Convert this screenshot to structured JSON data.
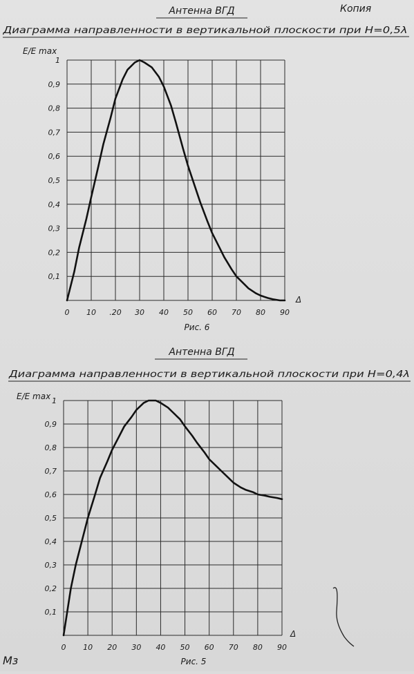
{
  "header": {
    "stamp": "Копия",
    "handwritten_mark": "Мз"
  },
  "chart_data": [
    {
      "type": "line",
      "title": "Антенна ВГД",
      "subtitle": "Диаграмма направленности в вертикальной плоскости при H=0,5λ",
      "ylabel": "E/E max",
      "xlabel": "Δ",
      "caption": "Рис. 6",
      "x_tick_labels": [
        "0",
        "10",
        ".20",
        "30",
        "40",
        "50",
        "60",
        "70",
        "80",
        "90"
      ],
      "y_tick_labels": [
        "0,1",
        "0,2",
        "0,3",
        "0,4",
        "0,5",
        "0,6",
        "0,7",
        "0,8",
        "0,9",
        "1"
      ],
      "xlim": [
        0,
        90
      ],
      "ylim": [
        0,
        1
      ],
      "grid": true,
      "series": [
        {
          "x": [
            0,
            3,
            5,
            8,
            10,
            13,
            15,
            18,
            20,
            23,
            25,
            28,
            30,
            32,
            35,
            38,
            40,
            43,
            45,
            48,
            50,
            53,
            55,
            58,
            60,
            63,
            65,
            68,
            70,
            73,
            75,
            78,
            80,
            83,
            85,
            88,
            90
          ],
          "y": [
            0.0,
            0.12,
            0.22,
            0.34,
            0.43,
            0.56,
            0.65,
            0.76,
            0.84,
            0.92,
            0.96,
            0.99,
            1.0,
            0.99,
            0.97,
            0.93,
            0.89,
            0.81,
            0.74,
            0.63,
            0.56,
            0.47,
            0.41,
            0.33,
            0.28,
            0.22,
            0.18,
            0.13,
            0.1,
            0.07,
            0.05,
            0.03,
            0.02,
            0.01,
            0.005,
            0.0,
            0.0
          ]
        }
      ]
    },
    {
      "type": "line",
      "title": "Антенна ВГД",
      "subtitle": "Диаграмма направленности в вертикальной плоскости при H=0,4λ",
      "ylabel": "E/E max",
      "xlabel": "Δ",
      "caption": "Рис. 5",
      "x_tick_labels": [
        "0",
        "10",
        "20",
        "30",
        "40",
        "50",
        "60",
        "70",
        "80",
        "90"
      ],
      "y_tick_labels": [
        "0,1",
        "0,2",
        "0,3",
        "0,4",
        "0,5",
        "0,6",
        "0,7",
        "0,8",
        "0,9",
        "1"
      ],
      "xlim": [
        0,
        90
      ],
      "ylim": [
        0,
        1
      ],
      "grid": true,
      "series": [
        {
          "x": [
            0,
            3,
            5,
            8,
            10,
            13,
            15,
            18,
            20,
            23,
            25,
            28,
            30,
            33,
            35,
            37,
            38,
            40,
            43,
            45,
            48,
            50,
            53,
            55,
            58,
            60,
            63,
            65,
            68,
            70,
            73,
            75,
            78,
            80,
            83,
            85,
            88,
            90
          ],
          "y": [
            0.0,
            0.2,
            0.3,
            0.42,
            0.5,
            0.6,
            0.67,
            0.74,
            0.79,
            0.85,
            0.89,
            0.93,
            0.96,
            0.99,
            1.0,
            1.0,
            1.0,
            0.99,
            0.97,
            0.95,
            0.92,
            0.89,
            0.85,
            0.82,
            0.78,
            0.75,
            0.72,
            0.7,
            0.67,
            0.65,
            0.63,
            0.62,
            0.61,
            0.6,
            0.595,
            0.59,
            0.585,
            0.58
          ]
        }
      ]
    }
  ]
}
